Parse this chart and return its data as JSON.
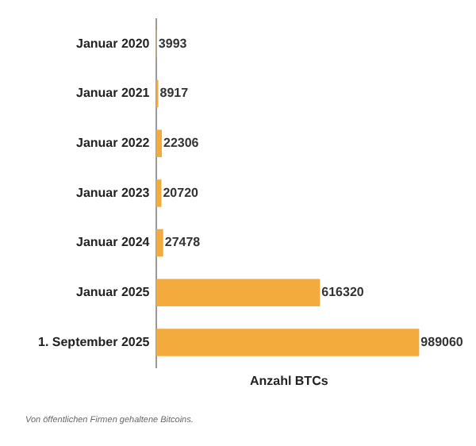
{
  "chart_data": {
    "type": "bar",
    "orientation": "horizontal",
    "xlabel": "Anzahl BTCs",
    "categories": [
      "Januar 2020",
      "Januar 2021",
      "Januar 2022",
      "Januar 2023",
      "Januar 2024",
      "Januar 2025",
      "1. September 2025"
    ],
    "values": [
      3993,
      8917,
      22306,
      20720,
      27478,
      616320,
      989060
    ],
    "color": "#f2ab3c",
    "data_labels": true,
    "grid": false,
    "legend": false,
    "annotations": [
      "Von öffentlichen Firmen gehaltene Bitcoins."
    ]
  }
}
